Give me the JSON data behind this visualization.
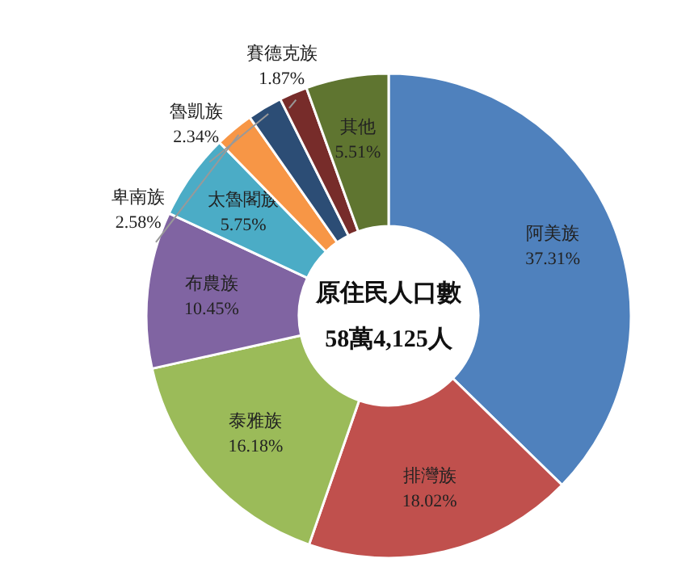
{
  "chart_data": {
    "type": "donut",
    "title": "原住民人口數",
    "subtitle": "58萬4,125人",
    "categories": [
      "阿美族",
      "排灣族",
      "泰雅族",
      "布農族",
      "太魯閣族",
      "卑南族",
      "魯凱族",
      "賽德克族",
      "其他"
    ],
    "values": [
      37.31,
      18.02,
      16.18,
      10.45,
      5.75,
      2.58,
      2.34,
      1.87,
      5.51
    ],
    "colors": [
      "#4f81bd",
      "#c0504d",
      "#9bbb59",
      "#8064a2",
      "#4bacc6",
      "#f79646",
      "#2c4d75",
      "#772c2a",
      "#5f7530"
    ],
    "value_labels": [
      "37.31%",
      "18.02%",
      "16.18%",
      "10.45%",
      "5.75%",
      "2.58%",
      "2.34%",
      "1.87%",
      "5.51%"
    ]
  }
}
